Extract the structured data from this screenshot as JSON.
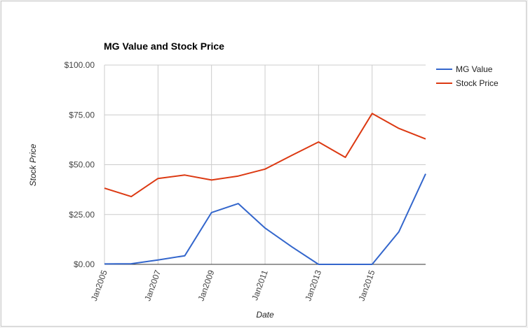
{
  "chart_data": {
    "type": "line",
    "title": "MG Value and Stock Price",
    "xlabel": "Date",
    "ylabel": "Stock Price",
    "x": [
      "2005-01",
      "2006-01",
      "2007-01",
      "2008-01",
      "2009-01",
      "2010-01",
      "2011-01",
      "2012-01",
      "2013-01",
      "2014-01",
      "2015-01",
      "2016-01",
      "2017-01"
    ],
    "x_ticks": [
      {
        "date": "2005-01",
        "label": "Jan2005"
      },
      {
        "date": "2007-01",
        "label": "Jan2007"
      },
      {
        "date": "2009-01",
        "label": "Jan2009"
      },
      {
        "date": "2011-01",
        "label": "Jan2011"
      },
      {
        "date": "2013-01",
        "label": "Jan2013"
      },
      {
        "date": "2015-01",
        "label": "Jan2015"
      }
    ],
    "y_ticks": [
      {
        "value": 0,
        "label": "$0.00"
      },
      {
        "value": 25,
        "label": "$25.00"
      },
      {
        "value": 50,
        "label": "$50.00"
      },
      {
        "value": 75,
        "label": "$75.00"
      },
      {
        "value": 100,
        "label": "$100.00"
      }
    ],
    "ylim": [
      0,
      100
    ],
    "grid": true,
    "legend_position": "right",
    "series": [
      {
        "name": "MG Value",
        "color": "#3366cc",
        "values": [
          0.2,
          0.3,
          2.2,
          4.3,
          26.0,
          30.5,
          18.2,
          8.8,
          0.0,
          0.0,
          0.0,
          16.3,
          45.4
        ]
      },
      {
        "name": "Stock Price",
        "color": "#dc3912",
        "values": [
          38.2,
          34.0,
          43.1,
          44.8,
          42.3,
          44.3,
          47.8,
          54.7,
          61.4,
          53.7,
          75.7,
          68.2,
          62.9
        ]
      }
    ]
  }
}
